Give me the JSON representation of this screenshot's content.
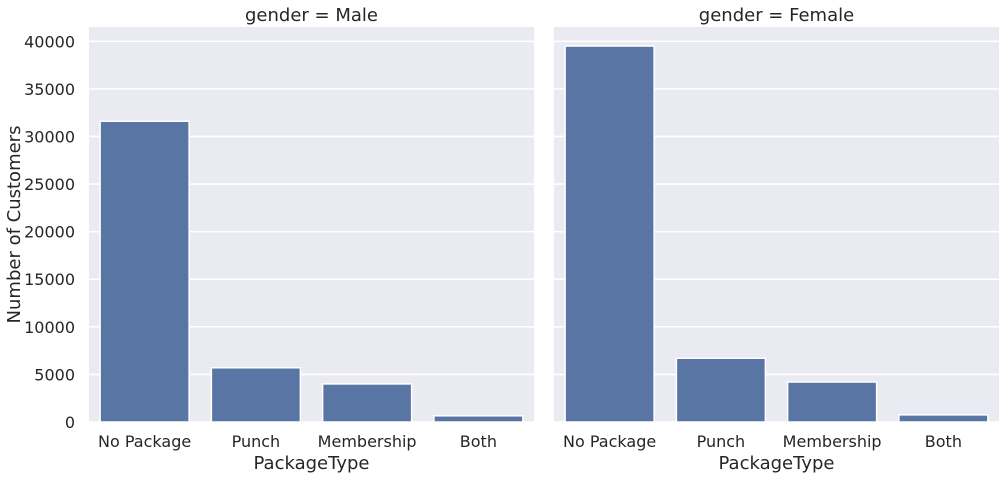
{
  "chart_data": {
    "type": "bar",
    "ylabel": "Number of Customers",
    "ylim": [
      0,
      41500
    ],
    "yticks": [
      0,
      5000,
      10000,
      15000,
      20000,
      25000,
      30000,
      35000,
      40000
    ],
    "grid": true,
    "bar_color": "#5975a4",
    "background_color": "#eaeaf2",
    "panels": [
      {
        "title": "gender = Male",
        "xlabel": "PackageType",
        "categories": [
          "No Package",
          "Punch",
          "Membership",
          "Both"
        ],
        "values": [
          31600,
          5700,
          4000,
          650
        ]
      },
      {
        "title": "gender = Female",
        "xlabel": "PackageType",
        "categories": [
          "No Package",
          "Punch",
          "Membership",
          "Both"
        ],
        "values": [
          39500,
          6700,
          4200,
          750
        ]
      }
    ]
  }
}
